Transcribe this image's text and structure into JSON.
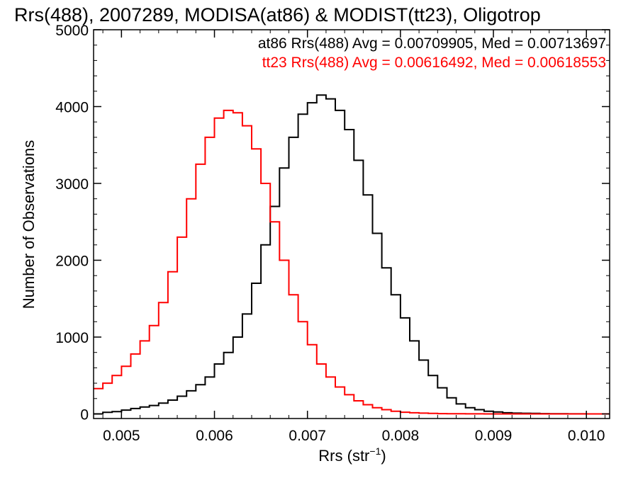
{
  "chart_data": {
    "type": "line",
    "title": "Rrs(488), 2007289, MODISA(at86) & MODIST(tt23), Oligotrop",
    "xlabel_main": "Rrs (str",
    "xlabel_sup": "−1",
    "xlabel_close": ")",
    "ylabel": "Number of Observations",
    "xlim": [
      0.0047,
      0.01025
    ],
    "ylim": [
      -60,
      5000
    ],
    "x_ticks": [
      {
        "value": 0.005,
        "label": "0.005"
      },
      {
        "value": 0.006,
        "label": "0.006"
      },
      {
        "value": 0.007,
        "label": "0.007"
      },
      {
        "value": 0.008,
        "label": "0.008"
      },
      {
        "value": 0.009,
        "label": "0.009"
      },
      {
        "value": 0.01,
        "label": "0.010"
      }
    ],
    "y_ticks": [
      {
        "value": 0,
        "label": "0"
      },
      {
        "value": 1000,
        "label": "1000"
      },
      {
        "value": 2000,
        "label": "2000"
      },
      {
        "value": 3000,
        "label": "3000"
      },
      {
        "value": 4000,
        "label": "4000"
      },
      {
        "value": 5000,
        "label": "5000"
      }
    ],
    "x_minor_step": 0.0002,
    "y_minor_step": 200,
    "grid": false,
    "legend_position": "top-right",
    "series": [
      {
        "name": "at86",
        "annotation": "at86 Rrs(488) Avg = 0.00709905, Med = 0.00713697",
        "color": "#000000",
        "x": [
          0.0047,
          0.0048,
          0.0049,
          0.005,
          0.0051,
          0.0052,
          0.0053,
          0.0054,
          0.0055,
          0.0056,
          0.0057,
          0.0058,
          0.0059,
          0.006,
          0.0061,
          0.0062,
          0.0063,
          0.0064,
          0.0065,
          0.0066,
          0.0067,
          0.0068,
          0.0069,
          0.007,
          0.0071,
          0.0072,
          0.0073,
          0.0074,
          0.0075,
          0.0076,
          0.0077,
          0.0078,
          0.0079,
          0.008,
          0.0081,
          0.0082,
          0.0083,
          0.0084,
          0.0085,
          0.0086,
          0.0087,
          0.0088,
          0.0089,
          0.009,
          0.0091,
          0.0092,
          0.0093,
          0.0094,
          0.0095,
          0.0096,
          0.0097,
          0.0098,
          0.0099,
          0.01,
          0.01025
        ],
        "y": [
          0,
          20,
          30,
          50,
          70,
          90,
          110,
          140,
          180,
          230,
          300,
          380,
          480,
          650,
          800,
          1000,
          1300,
          1700,
          2200,
          2700,
          3200,
          3600,
          3900,
          4050,
          4150,
          4100,
          3950,
          3700,
          3300,
          2850,
          2350,
          1900,
          1550,
          1250,
          950,
          700,
          500,
          340,
          210,
          130,
          80,
          55,
          35,
          25,
          15,
          10,
          8,
          6,
          4,
          3,
          2,
          1,
          1,
          0,
          0
        ]
      },
      {
        "name": "tt23",
        "annotation": "tt23 Rrs(488) Avg = 0.00616492, Med = 0.00618553",
        "color": "#ff0000",
        "x": [
          0.0047,
          0.0048,
          0.0049,
          0.005,
          0.0051,
          0.0052,
          0.0053,
          0.0054,
          0.0055,
          0.0056,
          0.0057,
          0.0058,
          0.0059,
          0.006,
          0.0061,
          0.0062,
          0.0063,
          0.0064,
          0.0065,
          0.0066,
          0.0067,
          0.0068,
          0.0069,
          0.007,
          0.0071,
          0.0072,
          0.0073,
          0.0074,
          0.0075,
          0.0076,
          0.0077,
          0.0078,
          0.0079,
          0.008,
          0.0081,
          0.0082,
          0.0083,
          0.0084,
          0.0085,
          0.0086,
          0.0087,
          0.0088,
          0.0089,
          0.009,
          0.0091,
          0.0092,
          0.0093,
          0.0094,
          0.0095,
          0.0096,
          0.0097,
          0.0098,
          0.0099,
          0.01,
          0.01025
        ],
        "y": [
          330,
          400,
          500,
          620,
          780,
          950,
          1150,
          1450,
          1850,
          2300,
          2800,
          3250,
          3600,
          3850,
          3950,
          3920,
          3750,
          3450,
          3000,
          2500,
          2000,
          1550,
          1200,
          900,
          650,
          480,
          350,
          250,
          170,
          120,
          80,
          55,
          35,
          22,
          15,
          10,
          6,
          4,
          3,
          2,
          1,
          1,
          0,
          0,
          0,
          0,
          0,
          0,
          0,
          0,
          0,
          0,
          0,
          0,
          0
        ]
      }
    ]
  }
}
